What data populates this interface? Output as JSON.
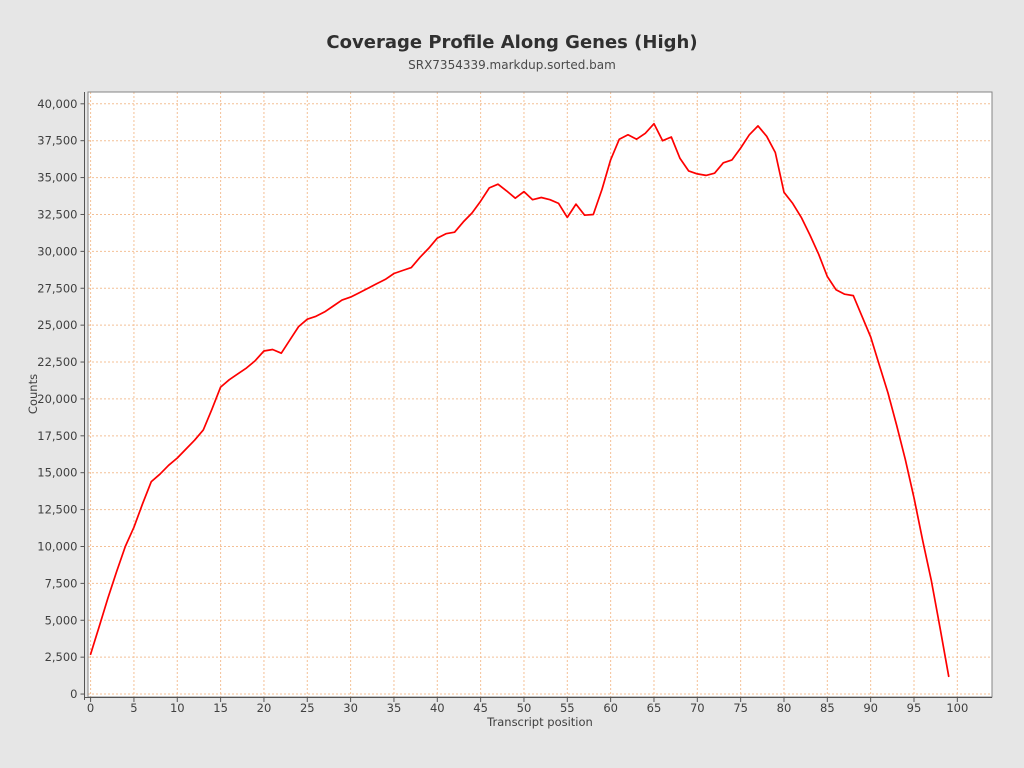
{
  "window": {
    "background_color": "#e6e6e6"
  },
  "chart_data": {
    "type": "line",
    "title": "Coverage Profile Along Genes (High)",
    "subtitle": "SRX7354339.markdup.sorted.bam",
    "xlabel": "Transcript position",
    "ylabel": "Counts",
    "grid": true,
    "grid_style": "dashed",
    "legend_position": "none",
    "xlim": [
      -0.3,
      104.0
    ],
    "ylim": [
      -200,
      40800
    ],
    "x_ticks": [
      0,
      5,
      10,
      15,
      20,
      25,
      30,
      35,
      40,
      45,
      50,
      55,
      60,
      65,
      70,
      75,
      80,
      85,
      90,
      95,
      100
    ],
    "x_tick_labels": [
      "0",
      "5",
      "10",
      "15",
      "20",
      "25",
      "30",
      "35",
      "40",
      "45",
      "50",
      "55",
      "60",
      "65",
      "70",
      "75",
      "80",
      "85",
      "90",
      "95",
      "100"
    ],
    "y_ticks": [
      0,
      2500,
      5000,
      7500,
      10000,
      12500,
      15000,
      17500,
      20000,
      22500,
      25000,
      27500,
      30000,
      32500,
      35000,
      37500,
      40000
    ],
    "y_tick_labels": [
      "0",
      "2,500",
      "5,000",
      "7,500",
      "10,000",
      "12,500",
      "15,000",
      "17,500",
      "20,000",
      "22,500",
      "25,000",
      "27,500",
      "30,000",
      "32,500",
      "35,000",
      "37,500",
      "40,000"
    ],
    "series": [
      {
        "name": "coverage",
        "color": "#fe0000",
        "x_start": 0,
        "x_step": 1,
        "values": [
          2700,
          4600,
          6500,
          8300,
          10000,
          11300,
          12900,
          14400,
          14900,
          15500,
          16000,
          16600,
          17200,
          17900,
          19300,
          20800,
          21300,
          21700,
          22100,
          22600,
          23250,
          23350,
          23100,
          24000,
          24900,
          25400,
          25600,
          25900,
          26300,
          26700,
          26900,
          27200,
          27500,
          27800,
          28100,
          28500,
          28700,
          28900,
          29600,
          30200,
          30900,
          31200,
          31300,
          32000,
          32600,
          33400,
          34300,
          34550,
          34100,
          33600,
          34050,
          33500,
          33650,
          33500,
          33250,
          32300,
          33200,
          32450,
          32500,
          34200,
          36200,
          37600,
          37900,
          37600,
          38000,
          38650,
          37500,
          37750,
          36300,
          35450,
          35250,
          35150,
          35300,
          36000,
          36200,
          37000,
          37900,
          38500,
          37800,
          36700,
          34000,
          33250,
          32300,
          31100,
          29800,
          28300,
          27400,
          27100,
          27000,
          25600,
          24200,
          22300,
          20400,
          18200,
          15900,
          13300,
          10400,
          7700,
          4500,
          1200
        ]
      }
    ],
    "colors": {
      "background": "#e6e6e6",
      "plot_background": "#ffffff",
      "grid": "#f4c096",
      "outline": "#848484",
      "axis": "#545454",
      "line": "#fe0000"
    }
  }
}
